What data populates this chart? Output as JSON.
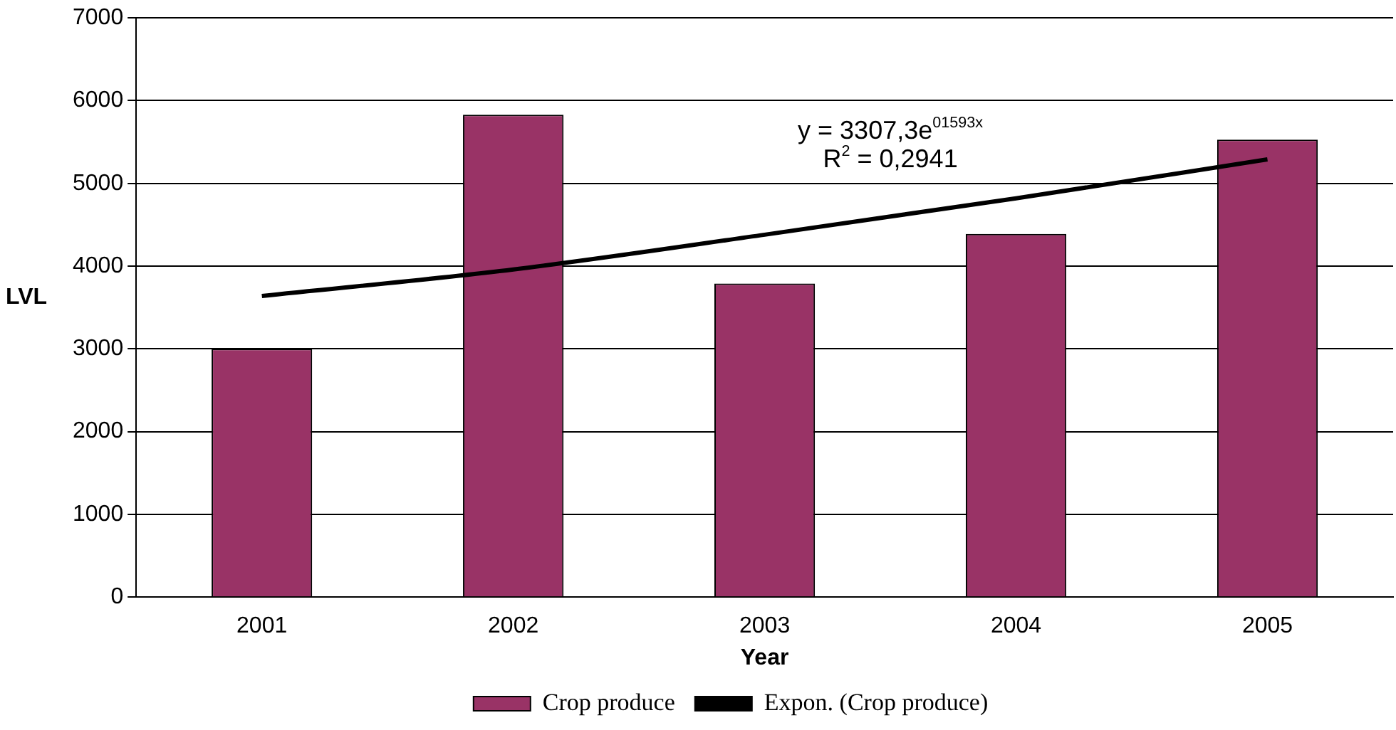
{
  "chart_data": {
    "type": "bar",
    "xlabel": "Year",
    "ylabel": "LVL",
    "categories": [
      "2001",
      "2002",
      "2003",
      "2004",
      "2005"
    ],
    "series": [
      {
        "name": "Crop produce",
        "color": "#993366",
        "values": [
          3000,
          5830,
          3790,
          4390,
          5530
        ]
      },
      {
        "name": "Expon. (Crop produce)",
        "type": "line",
        "color": "#000000",
        "values": [
          3640,
          3960,
          4380,
          4820,
          5290
        ]
      }
    ],
    "ylim": [
      0,
      7000
    ],
    "yticks": [
      0,
      1000,
      2000,
      3000,
      4000,
      5000,
      6000,
      7000
    ],
    "grid": "y",
    "legend": "bottom",
    "marker": "none",
    "annotations": [
      "y = 3307,3e$^{01593x}$",
      "R$^{2}$ = 0,2941"
    ]
  }
}
